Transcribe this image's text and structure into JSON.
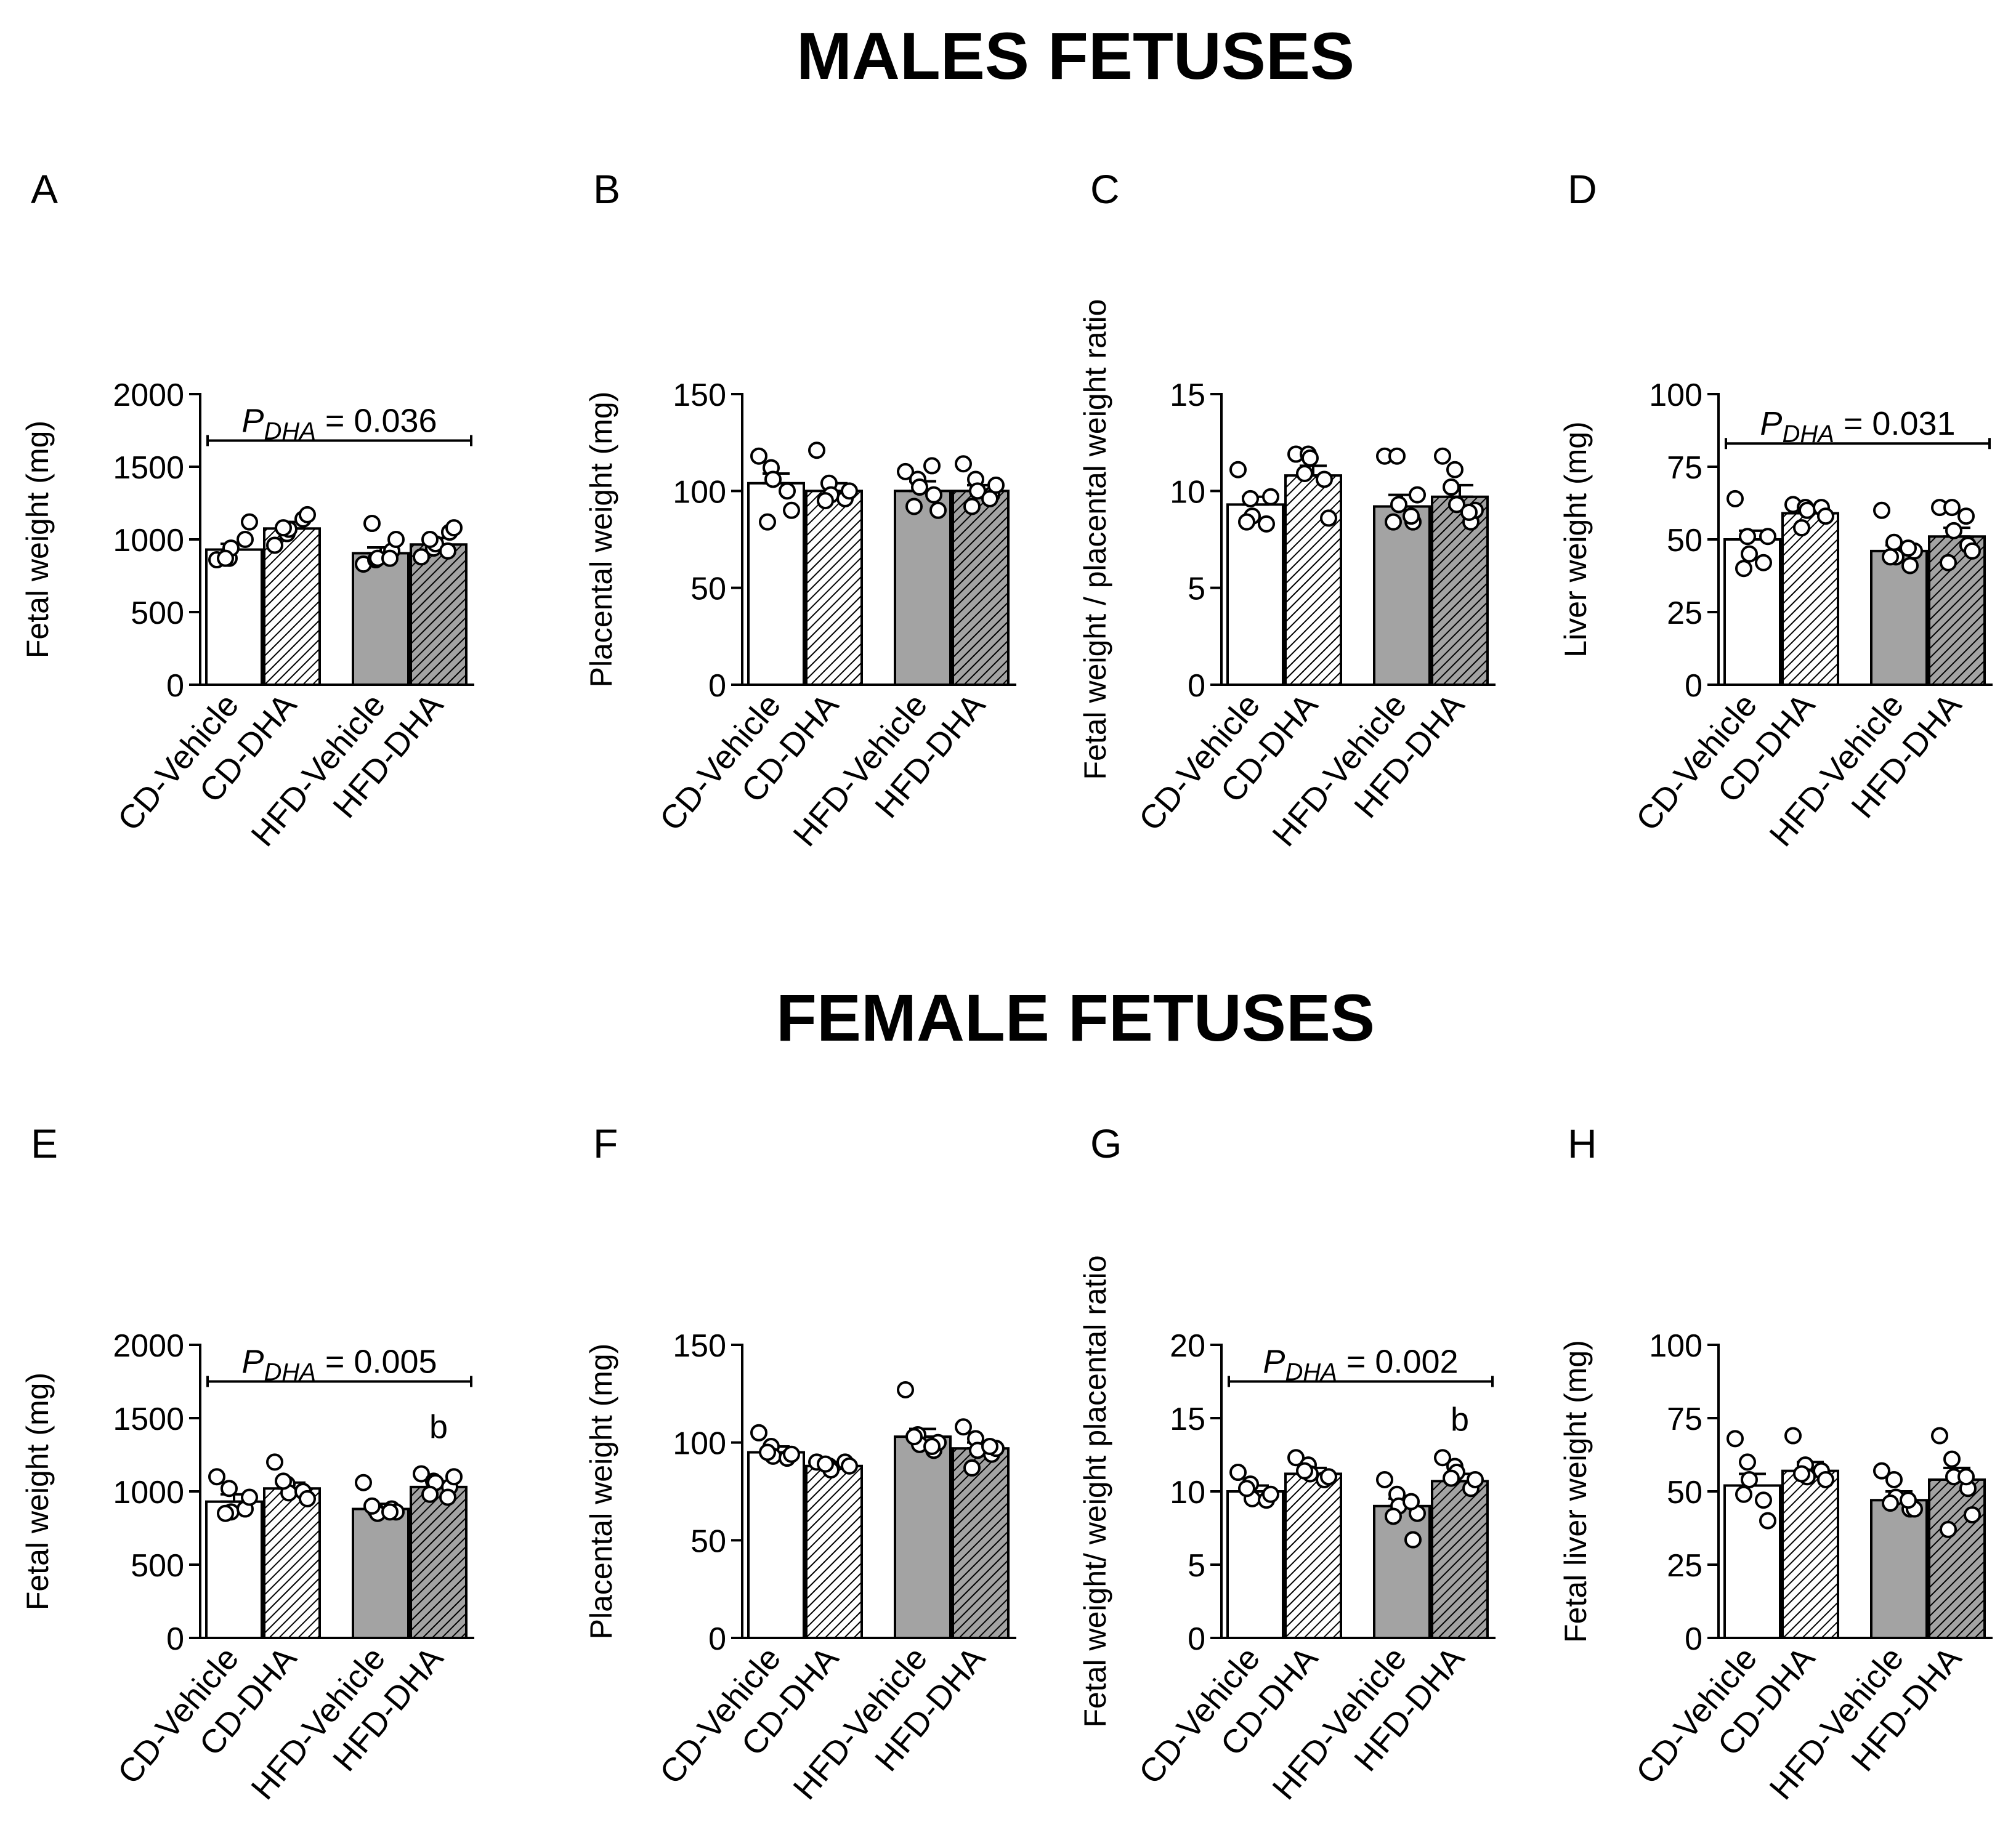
{
  "titles": {
    "males": "MALES FETUSES",
    "females": "FEMALE FETUSES"
  },
  "groups": [
    "CD-Vehicle",
    "CD-DHA",
    "HFD-Vehicle",
    "HFD-DHA"
  ],
  "chart_data": [
    {
      "panel": "A",
      "type": "bar",
      "categories": [
        "CD-Vehicle",
        "CD-DHA",
        "HFD-Vehicle",
        "HFD-DHA"
      ],
      "values": [
        930,
        1075,
        905,
        965
      ],
      "errors": [
        40,
        45,
        40,
        45
      ],
      "points": [
        [
          860,
          870,
          940,
          1000,
          1120,
          870
        ],
        [
          960,
          1040,
          1070,
          1140,
          1170,
          1080
        ],
        [
          830,
          860,
          870,
          920,
          1000,
          1110,
          870
        ],
        [
          880,
          940,
          970,
          1050,
          1080,
          1000,
          920
        ]
      ],
      "ylabel": "Fetal weight (mg)",
      "ylim": [
        0,
        2000
      ],
      "yticks": [
        0,
        500,
        1000,
        1500,
        2000
      ],
      "annotation": {
        "p_label": "P",
        "p_sub": "DHA",
        "p_value": "= 0.036",
        "y": 1680
      },
      "marks": []
    },
    {
      "panel": "B",
      "type": "bar",
      "categories": [
        "CD-Vehicle",
        "CD-DHA",
        "HFD-Vehicle",
        "HFD-DHA"
      ],
      "values": [
        104,
        100,
        100,
        100
      ],
      "errors": [
        5,
        4,
        5,
        3
      ],
      "points": [
        [
          118,
          112,
          106,
          100,
          90,
          84
        ],
        [
          121,
          104,
          98,
          96,
          100,
          95
        ],
        [
          110,
          106,
          102,
          98,
          90,
          92,
          113
        ],
        [
          114,
          106,
          100,
          98,
          103,
          92,
          96
        ]
      ],
      "ylabel": "Placental weight (mg)",
      "ylim": [
        0,
        150
      ],
      "yticks": [
        0,
        50,
        100,
        150
      ],
      "annotation": null,
      "marks": []
    },
    {
      "panel": "C",
      "type": "bar",
      "categories": [
        "CD-Vehicle",
        "CD-DHA",
        "HFD-Vehicle",
        "HFD-DHA"
      ],
      "values": [
        9.3,
        10.8,
        9.2,
        9.7
      ],
      "errors": [
        0.4,
        0.5,
        0.6,
        0.6
      ],
      "points": [
        [
          11.1,
          9.6,
          8.7,
          8.3,
          9.7,
          8.4
        ],
        [
          11.9,
          11.9,
          11.7,
          10.6,
          8.6,
          10.9
        ],
        [
          11.8,
          11.8,
          9.3,
          8.4,
          9.8,
          8.4,
          8.7
        ],
        [
          11.8,
          11.1,
          9.3,
          8.4,
          9.0,
          10.2,
          8.9
        ]
      ],
      "ylabel": "Fetal weight / placental weight ratio",
      "ylim": [
        0,
        15
      ],
      "yticks": [
        0,
        5,
        10,
        15
      ],
      "annotation": null,
      "marks": []
    },
    {
      "panel": "D",
      "type": "bar",
      "categories": [
        "CD-Vehicle",
        "CD-DHA",
        "HFD-Vehicle",
        "HFD-DHA"
      ],
      "values": [
        50,
        59,
        46,
        51
      ],
      "errors": [
        3,
        2,
        2,
        3
      ],
      "points": [
        [
          64,
          51,
          45,
          42,
          51,
          40
        ],
        [
          62,
          61,
          60,
          61,
          58,
          54
        ],
        [
          60,
          49,
          44,
          41,
          46,
          44,
          47
        ],
        [
          61,
          61,
          53,
          48,
          46,
          42,
          58
        ]
      ],
      "ylabel": "Liver weight (mg)",
      "ylim": [
        0,
        100
      ],
      "yticks": [
        0,
        25,
        50,
        75,
        100
      ],
      "annotation": {
        "p_label": "P",
        "p_sub": "DHA",
        "p_value": "= 0.031",
        "y": 83
      },
      "marks": []
    },
    {
      "panel": "E",
      "type": "bar",
      "categories": [
        "CD-Vehicle",
        "CD-DHA",
        "HFD-Vehicle",
        "HFD-DHA"
      ],
      "values": [
        930,
        1020,
        880,
        1030
      ],
      "errors": [
        50,
        40,
        35,
        40
      ],
      "points": [
        [
          1100,
          1020,
          860,
          880,
          960,
          850
        ],
        [
          1200,
          1050,
          990,
          1000,
          950,
          1070
        ],
        [
          1060,
          870,
          850,
          880,
          860,
          900,
          860
        ],
        [
          1120,
          1070,
          1060,
          1030,
          1100,
          980,
          960
        ]
      ],
      "ylabel": "Fetal weight (mg)",
      "ylim": [
        0,
        2000
      ],
      "yticks": [
        0,
        500,
        1000,
        1500,
        2000
      ],
      "annotation": {
        "p_label": "P",
        "p_sub": "DHA",
        "p_value": "= 0.005",
        "y": 1750
      },
      "marks": [
        "",
        "",
        "",
        "b"
      ]
    },
    {
      "panel": "F",
      "type": "bar",
      "categories": [
        "CD-Vehicle",
        "CD-DHA",
        "HFD-Vehicle",
        "HFD-DHA"
      ],
      "values": [
        95,
        88,
        103,
        97
      ],
      "errors": [
        3,
        2,
        4,
        3
      ],
      "points": [
        [
          105,
          98,
          93,
          92,
          94,
          95
        ],
        [
          90,
          88,
          86,
          90,
          88,
          89
        ],
        [
          127,
          104,
          99,
          96,
          100,
          103,
          98
        ],
        [
          108,
          102,
          96,
          94,
          97,
          87,
          98
        ]
      ],
      "ylabel": "Placental weight (mg)",
      "ylim": [
        0,
        150
      ],
      "yticks": [
        0,
        50,
        100,
        150
      ],
      "annotation": null,
      "marks": []
    },
    {
      "panel": "G",
      "type": "bar",
      "categories": [
        "CD-Vehicle",
        "CD-DHA",
        "HFD-Vehicle",
        "HFD-DHA"
      ],
      "values": [
        10,
        11.2,
        9,
        10.7
      ],
      "errors": [
        0.4,
        0.4,
        0.5,
        0.5
      ],
      "points": [
        [
          11.3,
          10.5,
          9.5,
          9.4,
          9.8,
          10.2
        ],
        [
          12.3,
          11.8,
          11.2,
          10.8,
          11.0,
          11.4
        ],
        [
          10.8,
          9.8,
          9.0,
          6.7,
          8.5,
          8.3,
          9.3
        ],
        [
          12.3,
          11.7,
          11.3,
          10.2,
          10.8,
          10.9
        ]
      ],
      "ylabel": "Fetal weight/ weight placental ratio",
      "ylim": [
        0,
        20
      ],
      "yticks": [
        0,
        5,
        10,
        15,
        20
      ],
      "annotation": {
        "p_label": "P",
        "p_sub": "DHA",
        "p_value": "= 0.002",
        "y": 17.5
      },
      "marks": [
        "",
        "",
        "",
        "b"
      ]
    },
    {
      "panel": "H",
      "type": "bar",
      "categories": [
        "CD-Vehicle",
        "CD-DHA",
        "HFD-Vehicle",
        "HFD-DHA"
      ],
      "values": [
        52,
        57,
        47,
        54
      ],
      "errors": [
        4,
        3,
        3,
        4
      ],
      "points": [
        [
          68,
          60,
          54,
          47,
          40,
          49
        ],
        [
          69,
          59,
          55,
          57,
          54,
          56
        ],
        [
          57,
          54,
          48,
          44,
          44,
          46,
          47
        ],
        [
          69,
          61,
          55,
          51,
          42,
          37,
          55
        ]
      ],
      "ylabel": "Fetal liver weight (mg)",
      "ylim": [
        0,
        100
      ],
      "yticks": [
        0,
        25,
        50,
        75,
        100
      ],
      "annotation": null,
      "marks": []
    }
  ]
}
